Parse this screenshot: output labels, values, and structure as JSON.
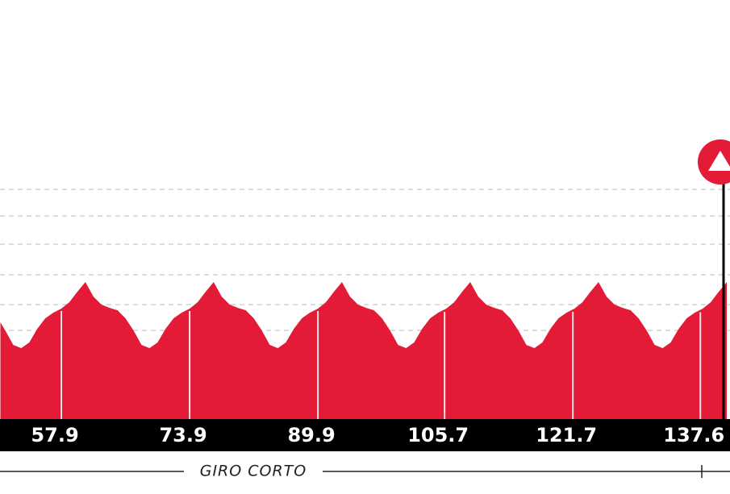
{
  "chart_data": {
    "type": "area",
    "color": "#e31b37",
    "x": [
      50.3,
      50.9,
      51.9,
      52.9,
      53.9,
      54.9,
      55.9,
      56.9,
      57.9,
      58.9,
      59.9,
      60.9,
      61.9,
      62.9,
      63.9,
      64.9,
      65.9,
      66.9,
      67.9,
      68.9,
      69.9,
      70.9,
      71.9,
      72.9,
      73.9,
      74.9,
      75.9,
      76.9,
      77.9,
      78.9,
      79.9,
      80.9,
      81.9,
      82.9,
      83.9,
      84.9,
      85.9,
      86.9,
      87.9,
      88.9,
      89.9,
      90.9,
      91.9,
      92.9,
      93.9,
      94.9,
      95.9,
      96.9,
      97.9,
      98.9,
      99.9,
      100.9,
      101.9,
      102.9,
      103.9,
      104.9,
      105.9,
      106.9,
      107.9,
      108.9,
      109.9,
      110.9,
      111.9,
      112.9,
      113.9,
      114.9,
      115.9,
      116.9,
      117.9,
      118.9,
      119.9,
      120.9,
      121.9,
      122.9,
      123.9,
      124.9,
      125.9,
      126.9,
      127.9,
      128.9,
      129.9,
      130.9,
      131.9,
      132.9,
      133.9,
      134.9,
      135.9,
      136.9,
      137.9,
      138.9,
      139.9,
      140.9
    ],
    "values": [
      120,
      110,
      92,
      88,
      95,
      112,
      125,
      132,
      137,
      145,
      158,
      170,
      152,
      142,
      138,
      135,
      125,
      110,
      92,
      88,
      95,
      112,
      125,
      132,
      137,
      145,
      158,
      170,
      152,
      142,
      138,
      135,
      125,
      110,
      92,
      88,
      95,
      112,
      125,
      132,
      137,
      145,
      158,
      170,
      152,
      142,
      138,
      135,
      125,
      110,
      92,
      88,
      95,
      112,
      125,
      132,
      137,
      145,
      158,
      170,
      152,
      142,
      138,
      135,
      125,
      110,
      92,
      88,
      95,
      112,
      125,
      132,
      137,
      145,
      158,
      170,
      152,
      142,
      138,
      135,
      125,
      110,
      92,
      88,
      95,
      112,
      125,
      132,
      137,
      145,
      158,
      170
    ],
    "xlim": [
      50.25,
      141.3
    ],
    "xticks": [
      57.9,
      73.9,
      89.9,
      105.7,
      121.7,
      137.6
    ],
    "ylim": [
      0,
      300
    ],
    "yticks": [
      110,
      142,
      179,
      217,
      252,
      285
    ],
    "grid": true,
    "route_label": "GIRO CORTO"
  }
}
